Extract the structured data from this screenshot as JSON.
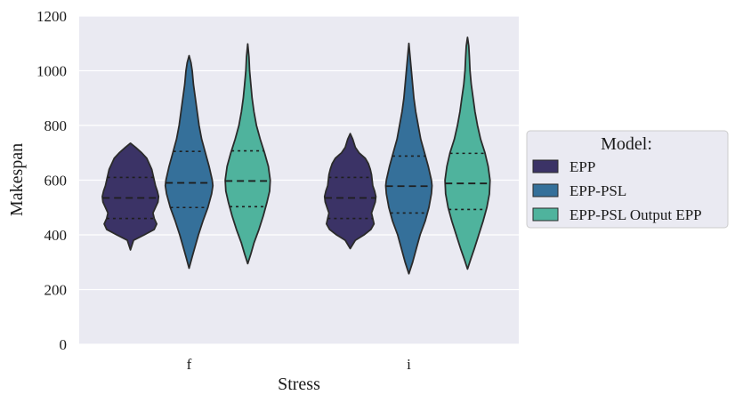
{
  "chart_data": {
    "type": "violin",
    "xlabel": "Stress",
    "ylabel": "Makespan",
    "ylim": [
      0,
      1200
    ],
    "yticks": [
      0,
      200,
      400,
      600,
      800,
      1000,
      1200
    ],
    "categories": [
      "f",
      "i"
    ],
    "grid": true,
    "legend": {
      "title": "Model:",
      "placement": "right",
      "entries": [
        "EPP",
        "EPP-PSL",
        "EPP-PSL Output EPP"
      ]
    },
    "series": [
      {
        "name": "EPP",
        "color": "#3b3366",
        "groups": [
          {
            "category": "f",
            "min": 345,
            "max": 735,
            "q1": 460,
            "median": 535,
            "q3": 610,
            "profile": [
              [
                345,
                0
              ],
              [
                380,
                5
              ],
              [
                400,
                22
              ],
              [
                420,
                38
              ],
              [
                440,
                42
              ],
              [
                460,
                38
              ],
              [
                480,
                36
              ],
              [
                500,
                40
              ],
              [
                520,
                44
              ],
              [
                540,
                45
              ],
              [
                560,
                43
              ],
              [
                580,
                40
              ],
              [
                600,
                38
              ],
              [
                620,
                36
              ],
              [
                640,
                34
              ],
              [
                660,
                30
              ],
              [
                680,
                26
              ],
              [
                700,
                18
              ],
              [
                720,
                8
              ],
              [
                735,
                0
              ]
            ]
          },
          {
            "category": "i",
            "min": 350,
            "max": 770,
            "q1": 460,
            "median": 535,
            "q3": 610,
            "profile": [
              [
                350,
                0
              ],
              [
                380,
                8
              ],
              [
                400,
                22
              ],
              [
                420,
                33
              ],
              [
                440,
                38
              ],
              [
                460,
                36
              ],
              [
                480,
                34
              ],
              [
                500,
                37
              ],
              [
                520,
                40
              ],
              [
                540,
                41
              ],
              [
                560,
                39
              ],
              [
                580,
                36
              ],
              [
                600,
                35
              ],
              [
                620,
                34
              ],
              [
                640,
                32
              ],
              [
                660,
                29
              ],
              [
                680,
                24
              ],
              [
                700,
                14
              ],
              [
                720,
                8
              ],
              [
                750,
                4
              ],
              [
                770,
                0
              ]
            ]
          }
        ]
      },
      {
        "name": "EPP-PSL",
        "color": "#35709a",
        "groups": [
          {
            "category": "f",
            "min": 278,
            "max": 1055,
            "q1": 500,
            "median": 590,
            "q3": 705,
            "profile": [
              [
                278,
                0
              ],
              [
                320,
                5
              ],
              [
                360,
                10
              ],
              [
                400,
                15
              ],
              [
                450,
                22
              ],
              [
                500,
                30
              ],
              [
                550,
                36
              ],
              [
                580,
                38
              ],
              [
                600,
                37
              ],
              [
                650,
                32
              ],
              [
                700,
                26
              ],
              [
                750,
                20
              ],
              [
                800,
                16
              ],
              [
                850,
                13
              ],
              [
                900,
                10
              ],
              [
                950,
                7
              ],
              [
                1000,
                5
              ],
              [
                1030,
                3
              ],
              [
                1055,
                0
              ]
            ]
          },
          {
            "category": "i",
            "min": 258,
            "max": 1100,
            "q1": 480,
            "median": 578,
            "q3": 688,
            "profile": [
              [
                258,
                0
              ],
              [
                300,
                6
              ],
              [
                350,
                12
              ],
              [
                400,
                18
              ],
              [
                450,
                26
              ],
              [
                500,
                32
              ],
              [
                550,
                36
              ],
              [
                580,
                37
              ],
              [
                600,
                36
              ],
              [
                650,
                31
              ],
              [
                700,
                25
              ],
              [
                750,
                19
              ],
              [
                800,
                15
              ],
              [
                850,
                11
              ],
              [
                900,
                8
              ],
              [
                950,
                6
              ],
              [
                1000,
                4
              ],
              [
                1050,
                2
              ],
              [
                1100,
                0
              ]
            ]
          }
        ]
      },
      {
        "name": "EPP-PSL Output EPP",
        "color": "#4fb39d",
        "groups": [
          {
            "category": "f",
            "min": 295,
            "max": 1098,
            "q1": 503,
            "median": 597,
            "q3": 707,
            "profile": [
              [
                295,
                0
              ],
              [
                330,
                5
              ],
              [
                370,
                10
              ],
              [
                420,
                18
              ],
              [
                470,
                25
              ],
              [
                520,
                31
              ],
              [
                560,
                35
              ],
              [
                600,
                36
              ],
              [
                650,
                33
              ],
              [
                700,
                27
              ],
              [
                750,
                20
              ],
              [
                800,
                14
              ],
              [
                850,
                10
              ],
              [
                900,
                7
              ],
              [
                950,
                5
              ],
              [
                1000,
                3
              ],
              [
                1050,
                2
              ],
              [
                1098,
                0
              ]
            ]
          },
          {
            "category": "i",
            "min": 275,
            "max": 1122,
            "q1": 493,
            "median": 588,
            "q3": 698,
            "profile": [
              [
                275,
                0
              ],
              [
                310,
                5
              ],
              [
                350,
                11
              ],
              [
                400,
                18
              ],
              [
                450,
                25
              ],
              [
                500,
                31
              ],
              [
                550,
                35
              ],
              [
                600,
                36
              ],
              [
                650,
                33
              ],
              [
                700,
                28
              ],
              [
                750,
                21
              ],
              [
                800,
                16
              ],
              [
                850,
                12
              ],
              [
                900,
                9
              ],
              [
                950,
                6
              ],
              [
                1000,
                4
              ],
              [
                1050,
                3
              ],
              [
                1090,
                2
              ],
              [
                1122,
                0
              ]
            ]
          }
        ]
      }
    ]
  }
}
